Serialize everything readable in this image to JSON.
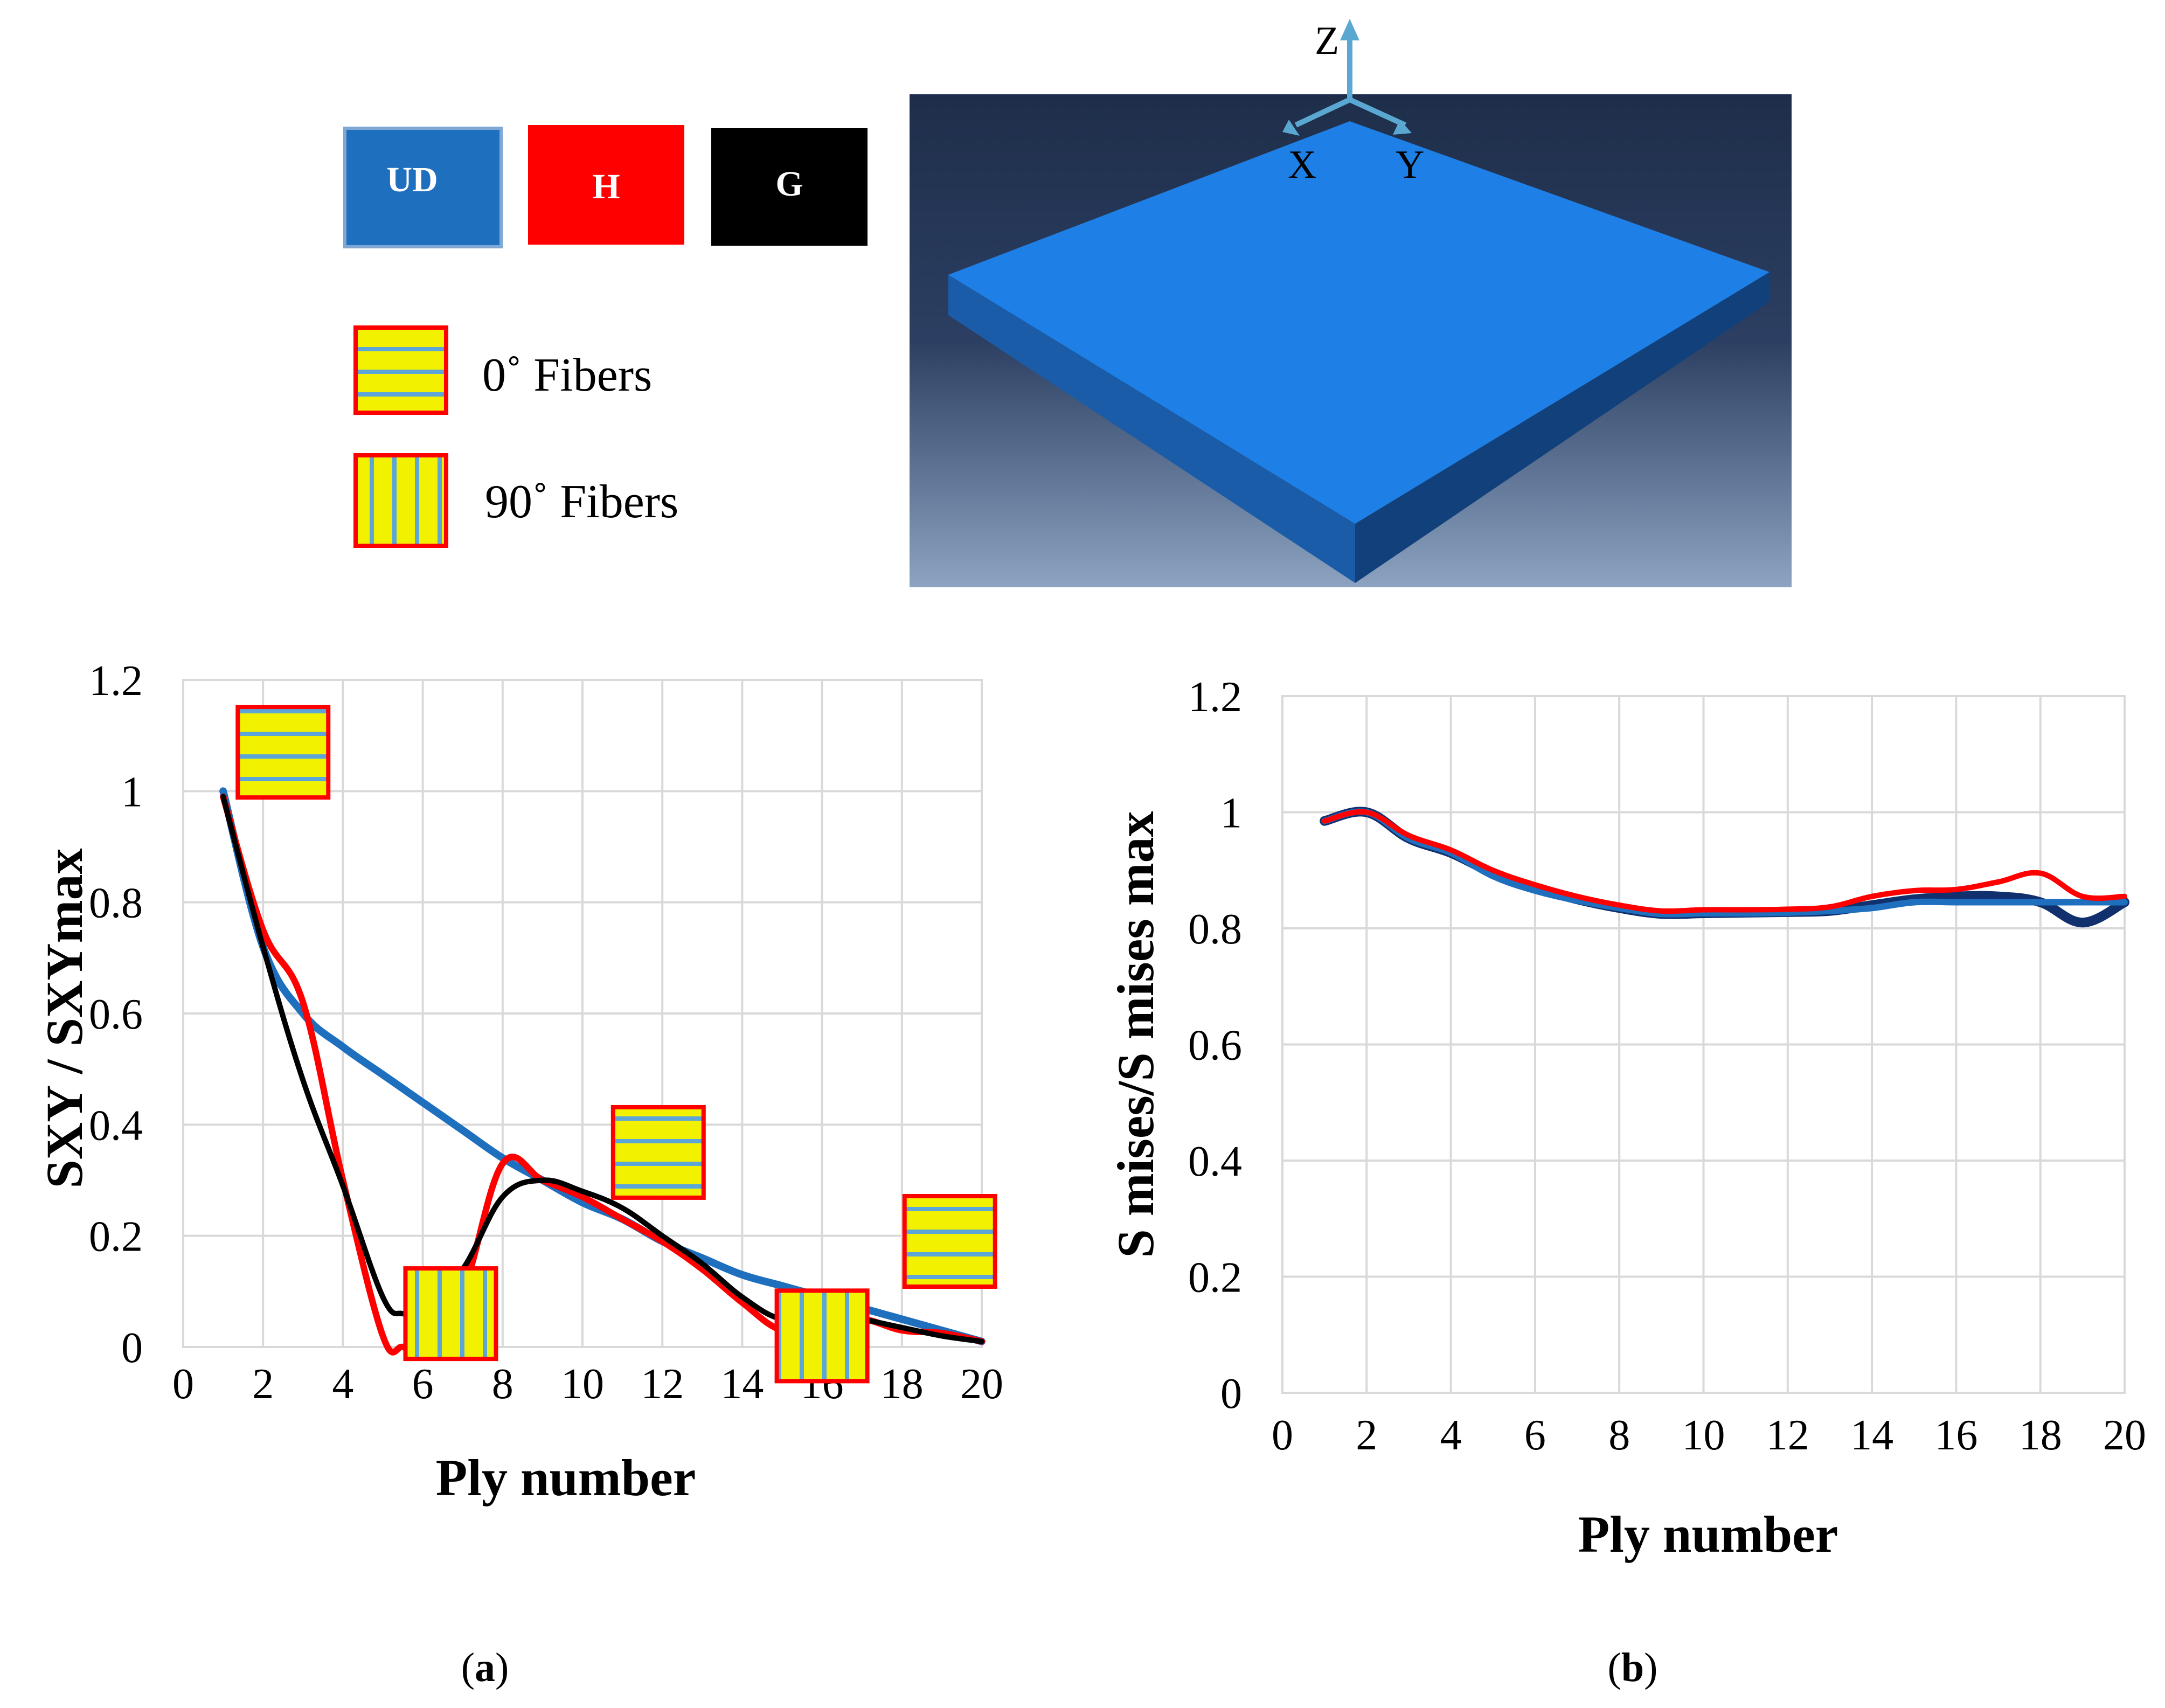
{
  "legend": {
    "materials": [
      {
        "label": "UD",
        "color": "#1F6FBF"
      },
      {
        "label": "H",
        "color": "#FF0000"
      },
      {
        "label": "G",
        "color": "#000000"
      }
    ],
    "fibers": [
      {
        "label": "0˚ Fibers",
        "orientation": "horizontal"
      },
      {
        "label": "90˚ Fibers",
        "orientation": "vertical"
      }
    ]
  },
  "model": {
    "plate_color": "#1E80E6",
    "axes": {
      "z": "Z",
      "x": "X",
      "y": "Y"
    }
  },
  "panel_labels": {
    "a": "a",
    "b": "b"
  },
  "chart_data": [
    {
      "type": "line",
      "xlabel": "Ply number",
      "ylabel": "SXY  / SXYmax",
      "xlim": [
        0,
        20
      ],
      "ylim": [
        0,
        1.2
      ],
      "x_ticks": [
        "0",
        "2",
        "4",
        "6",
        "8",
        "10",
        "12",
        "14",
        "16",
        "18",
        "20"
      ],
      "y_ticks": [
        "0",
        "0.2",
        "0.4",
        "0.6",
        "0.8",
        "1",
        "1.2"
      ],
      "grid": true,
      "series": [
        {
          "name": "UD",
          "color": "#1F6FBF",
          "x": [
            1,
            2,
            3,
            4,
            5,
            6,
            7,
            8,
            9,
            10,
            11,
            12,
            13,
            14,
            15,
            16,
            17,
            18,
            19,
            20
          ],
          "y": [
            1.0,
            0.72,
            0.6,
            0.54,
            0.49,
            0.44,
            0.39,
            0.34,
            0.3,
            0.26,
            0.23,
            0.19,
            0.16,
            0.13,
            0.11,
            0.09,
            0.07,
            0.05,
            0.03,
            0.01
          ]
        },
        {
          "name": "H",
          "color": "#FF0000",
          "x": [
            1,
            2,
            3,
            4,
            5,
            5.5,
            6,
            7,
            8,
            9,
            10,
            11,
            12,
            13,
            14,
            15,
            16,
            17,
            18,
            19,
            20
          ],
          "y": [
            0.99,
            0.75,
            0.62,
            0.3,
            0.02,
            0.0,
            0.0,
            0.1,
            0.33,
            0.3,
            0.27,
            0.23,
            0.19,
            0.14,
            0.08,
            0.03,
            0.04,
            0.05,
            0.03,
            0.025,
            0.01
          ]
        },
        {
          "name": "G",
          "color": "#000000",
          "x": [
            1,
            2,
            3,
            4,
            5,
            5.5,
            6,
            7,
            8,
            9,
            10,
            11,
            12,
            13,
            14,
            15,
            16,
            17,
            18,
            19,
            20
          ],
          "y": [
            0.99,
            0.72,
            0.48,
            0.29,
            0.09,
            0.06,
            0.07,
            0.14,
            0.27,
            0.3,
            0.28,
            0.25,
            0.2,
            0.15,
            0.09,
            0.05,
            0.06,
            0.05,
            0.035,
            0.02,
            0.01
          ]
        }
      ],
      "fiber_markers": [
        {
          "orientation": "horizontal",
          "x": 2.5,
          "y": 1.07
        },
        {
          "orientation": "vertical",
          "x": 6.7,
          "y": 0.06
        },
        {
          "orientation": "horizontal",
          "x": 11.9,
          "y": 0.35
        },
        {
          "orientation": "vertical",
          "x": 16.0,
          "y": 0.02
        },
        {
          "orientation": "horizontal",
          "x": 19.2,
          "y": 0.19
        }
      ]
    },
    {
      "type": "line",
      "xlabel": "Ply number",
      "ylabel": "S mises/S mises max",
      "xlim": [
        0,
        20
      ],
      "ylim": [
        0,
        1.2
      ],
      "x_ticks": [
        "0",
        "2",
        "4",
        "6",
        "8",
        "10",
        "12",
        "14",
        "16",
        "18",
        "20"
      ],
      "y_ticks": [
        "0",
        "0.2",
        "0.4",
        "0.6",
        "0.8",
        "1",
        "1.2"
      ],
      "grid": true,
      "series": [
        {
          "name": "G",
          "color": "#10306E",
          "x": [
            1,
            2,
            3,
            4,
            5,
            6,
            7,
            8,
            9,
            10,
            11,
            12,
            13,
            14,
            15,
            16,
            17,
            18,
            19,
            20
          ],
          "y": [
            0.985,
            1.0,
            0.955,
            0.93,
            0.895,
            0.87,
            0.85,
            0.835,
            0.825,
            0.826,
            0.827,
            0.828,
            0.83,
            0.84,
            0.85,
            0.855,
            0.855,
            0.845,
            0.81,
            0.845
          ]
        },
        {
          "name": "UD",
          "color": "#1F6FBF",
          "x": [
            1,
            2,
            3,
            4,
            5,
            6,
            7,
            8,
            9,
            10,
            11,
            12,
            13,
            14,
            15,
            16,
            17,
            18,
            19,
            20
          ],
          "y": [
            0.985,
            1.0,
            0.955,
            0.93,
            0.89,
            0.865,
            0.848,
            0.835,
            0.825,
            0.826,
            0.826,
            0.827,
            0.83,
            0.835,
            0.845,
            0.845,
            0.845,
            0.845,
            0.845,
            0.845
          ]
        },
        {
          "name": "H",
          "color": "#FF0000",
          "x": [
            1,
            2,
            3,
            4,
            5,
            6,
            7,
            8,
            9,
            10,
            11,
            12,
            13,
            14,
            15,
            16,
            17,
            18,
            19,
            20
          ],
          "y": [
            0.985,
            1.0,
            0.96,
            0.935,
            0.9,
            0.875,
            0.855,
            0.84,
            0.83,
            0.832,
            0.832,
            0.833,
            0.837,
            0.855,
            0.865,
            0.867,
            0.88,
            0.895,
            0.855,
            0.855
          ]
        }
      ]
    }
  ]
}
